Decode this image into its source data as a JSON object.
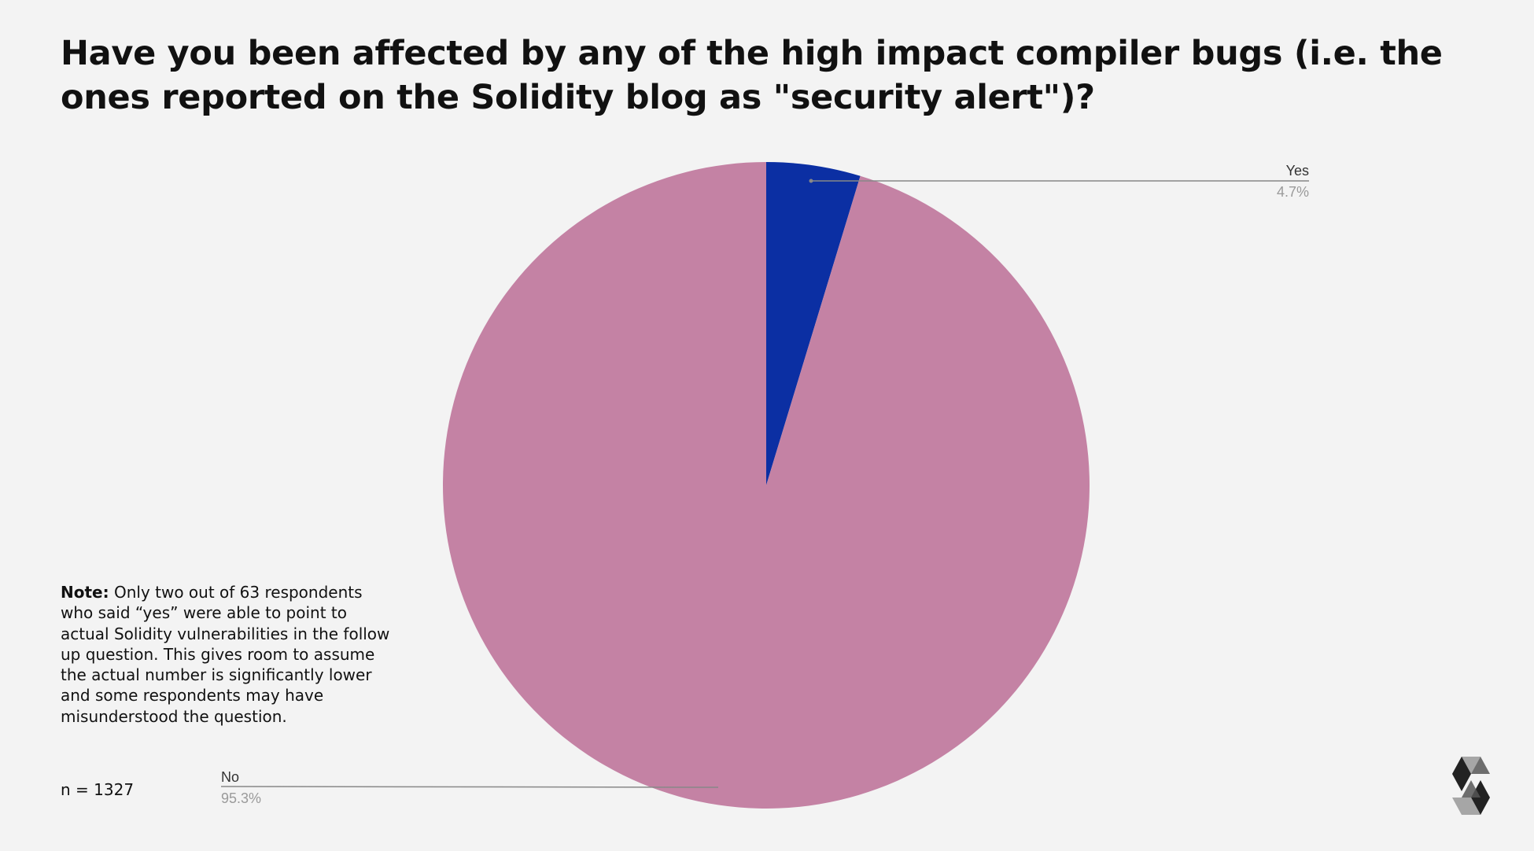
{
  "title": "Have you been affected by any of the high impact compiler bugs (i.e. the ones reported on the Solidity blog as \"security alert\")?",
  "note": {
    "label": "Note:",
    "text": "Only two out of 63 respondents who said “yes” were able to point to actual Solidity vulnerabilities in the follow up question. This gives room to assume the actual number is significantly lower and some respondents may have misunderstood the question."
  },
  "sample_size": "n = 1327",
  "colors": {
    "background": "#f3f3f3",
    "yes": "#0b2fa3",
    "no": "#c482a4",
    "leader_line": "#888888",
    "label": "#333333",
    "percent": "#9a9a9a"
  },
  "chart_data": {
    "type": "pie",
    "title": "Have you been affected by any of the high impact compiler bugs (i.e. the ones reported on the Solidity blog as \"security alert\")?",
    "slices": [
      {
        "label": "Yes",
        "value": 4.7,
        "display": "4.7%",
        "color": "#0b2fa3"
      },
      {
        "label": "No",
        "value": 95.3,
        "display": "95.3%",
        "color": "#c482a4"
      }
    ],
    "start_angle": "12 o'clock",
    "direction": "clockwise",
    "legend": "none",
    "labels": "outside with leader lines"
  }
}
